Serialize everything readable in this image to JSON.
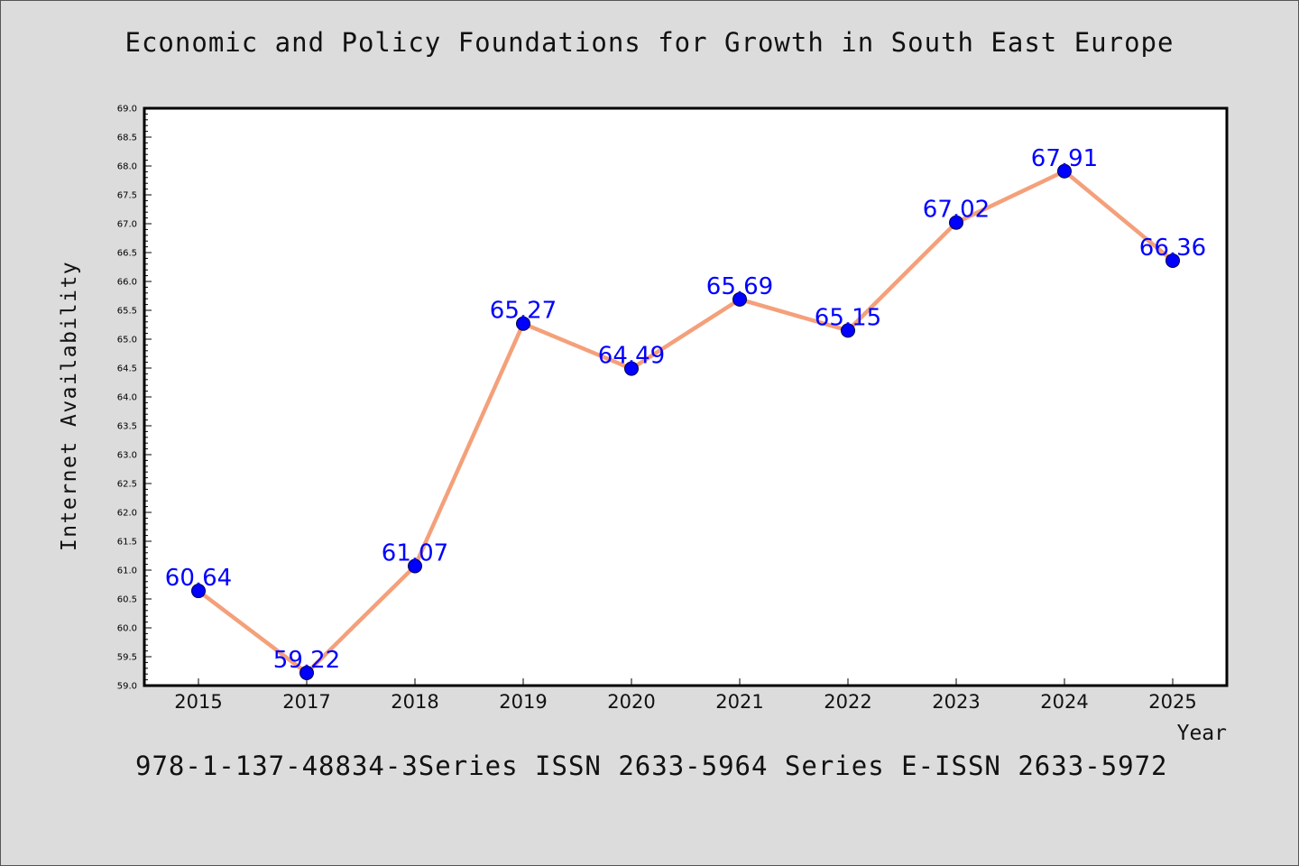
{
  "chart_data": {
    "type": "line",
    "title": "Economic and Policy Foundations for Growth in South East Europe",
    "xlabel": "Year",
    "ylabel": "Internet Availability",
    "footer": "978-1-137-48834-3Series ISSN 2633-5964 Series E-ISSN 2633-5972",
    "categories": [
      "2015",
      "2017",
      "2018",
      "2019",
      "2020",
      "2021",
      "2022",
      "2023",
      "2024",
      "2025"
    ],
    "values": [
      60.64,
      59.22,
      61.07,
      65.27,
      64.49,
      65.69,
      65.15,
      67.02,
      67.91,
      66.36
    ],
    "value_labels": [
      "60.64",
      "59.22",
      "61.07",
      "65.27",
      "64.49",
      "65.69",
      "65.15",
      "67.02",
      "67.91",
      "66.36"
    ],
    "ylim": [
      59.0,
      69.0
    ],
    "y_ticks": [
      "59.0",
      "59.5",
      "60.0",
      "60.5",
      "61.0",
      "61.5",
      "62.0",
      "62.5",
      "63.0",
      "63.5",
      "64.0",
      "64.5",
      "65.0",
      "65.5",
      "66.0",
      "66.5",
      "67.0",
      "67.5",
      "68.0",
      "68.5",
      "69.0"
    ],
    "grid": false,
    "colors": {
      "line": "#f4a07a",
      "marker": "#0000ff",
      "label": "#0000ff",
      "background": "#dcdcdc",
      "plot_background": "#ffffff"
    }
  }
}
